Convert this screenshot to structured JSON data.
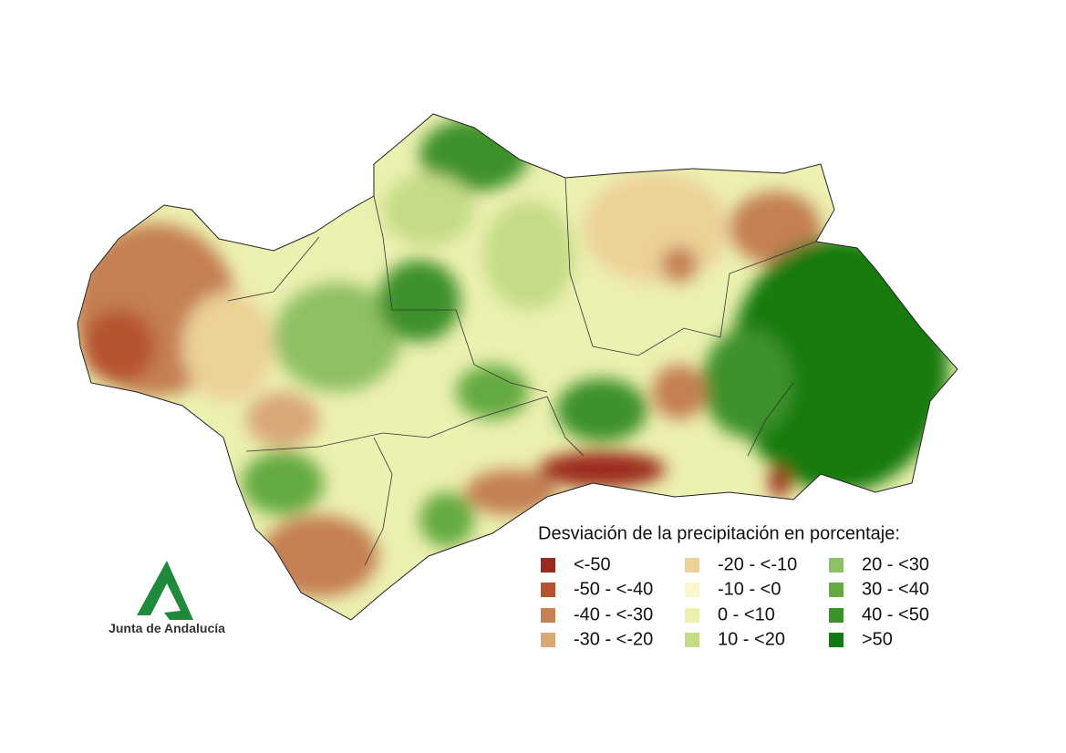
{
  "legend": {
    "title": "Desviación de la precipitación en porcentaje:",
    "items": [
      {
        "label": "<-50",
        "color": "#9b2a1e"
      },
      {
        "label": "-50 - <-40",
        "color": "#b5532f"
      },
      {
        "label": "-40 - <-30",
        "color": "#c47f52"
      },
      {
        "label": "-30 - <-20",
        "color": "#d8a877"
      },
      {
        "label": "-20 - <-10",
        "color": "#ecd198"
      },
      {
        "label": "-10 - <0",
        "color": "#fbf6cb"
      },
      {
        "label": "0 - <10",
        "color": "#ecf0b0"
      },
      {
        "label": "10 - <20",
        "color": "#c4dc86"
      },
      {
        "label": "20 - <30",
        "color": "#8fc063"
      },
      {
        "label": "30 - <40",
        "color": "#64aa3f"
      },
      {
        "label": "40 - <50",
        "color": "#3d9129"
      },
      {
        "label": ">50",
        "color": "#137a11"
      }
    ]
  },
  "logo": {
    "text": "Junta de Andalucía"
  }
}
